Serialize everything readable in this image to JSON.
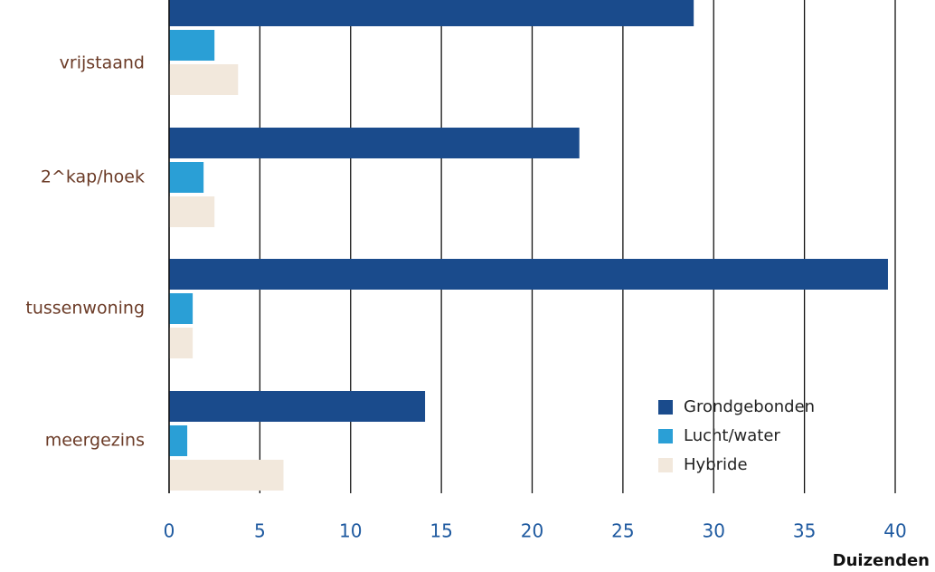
{
  "chart_data": {
    "type": "hbar",
    "categories": [
      "vrijstaand",
      "2^kap/hoek",
      "tussenwoning",
      "meergezins"
    ],
    "series": [
      {
        "name": "Grondgebonden",
        "color": "#1a4b8c",
        "values": [
          28.9,
          22.6,
          39.6,
          14.1
        ]
      },
      {
        "name": "Lucht/water",
        "color": "#2a9fd6",
        "values": [
          2.5,
          1.9,
          1.3,
          1.0
        ]
      },
      {
        "name": "Hybride",
        "color": "#f2e8dc",
        "values": [
          3.8,
          2.5,
          1.3,
          6.3
        ]
      }
    ],
    "xlim": [
      0,
      40
    ],
    "xticks": [
      0,
      5,
      10,
      15,
      20,
      25,
      30,
      35,
      40
    ],
    "x_label": "Duizenden",
    "grid": true,
    "legend": "lower right"
  }
}
